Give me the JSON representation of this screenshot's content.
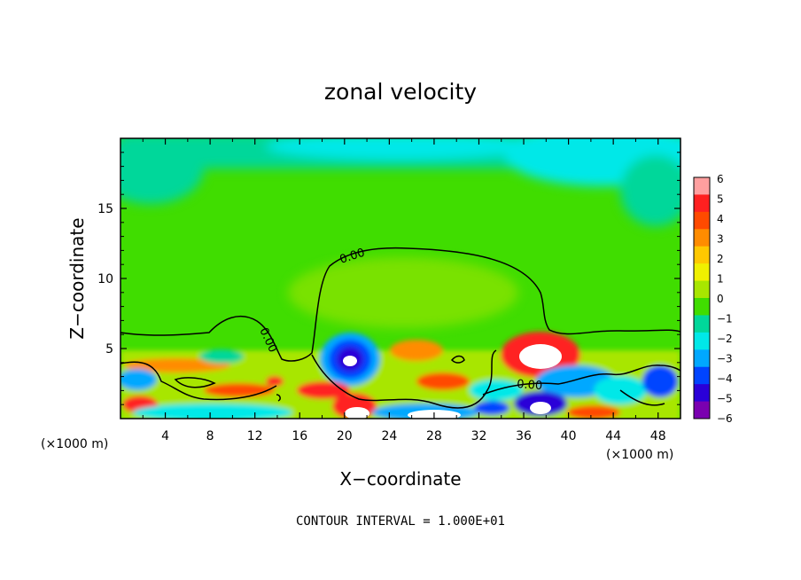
{
  "chart_data": {
    "type": "heatmap",
    "title": "zonal velocity",
    "xlabel": "X−coordinate",
    "ylabel": "Z−coordinate",
    "xlim": [
      0,
      50000
    ],
    "ylim": [
      0,
      20000
    ],
    "x_ticks": [
      "4",
      "8",
      "12",
      "16",
      "20",
      "24",
      "28",
      "32",
      "36",
      "40",
      "44",
      "48"
    ],
    "x_tick_values": [
      4,
      8,
      12,
      16,
      20,
      24,
      28,
      32,
      36,
      40,
      44,
      48
    ],
    "y_ticks": [
      "5",
      "10",
      "15"
    ],
    "y_tick_values": [
      5,
      10,
      15
    ],
    "x_scale_left": "(×1000 m)",
    "x_scale_right": "(×1000 m)",
    "colorbar": {
      "labels": [
        "6",
        "5",
        "4",
        "3",
        "2",
        "1",
        "0",
        "−1",
        "−2",
        "−3",
        "−4",
        "−5",
        "−6"
      ],
      "values": [
        6,
        5,
        4,
        3,
        2,
        1,
        0,
        -1,
        -2,
        -3,
        -4,
        -5,
        -6
      ],
      "colors": [
        "#ff9f9f",
        "#ff2020",
        "#ff4a00",
        "#ff8c00",
        "#ffc800",
        "#f0f000",
        "#a8e600",
        "#40dd00",
        "#00d79a",
        "#00e8e8",
        "#00a8ff",
        "#0044ff",
        "#2a00d8",
        "#7a00b0"
      ]
    },
    "contour_labels": [
      "0.00",
      "0.00",
      "0.00"
    ],
    "contour_interval": "CONTOUR INTERVAL = 1.000E+01"
  }
}
